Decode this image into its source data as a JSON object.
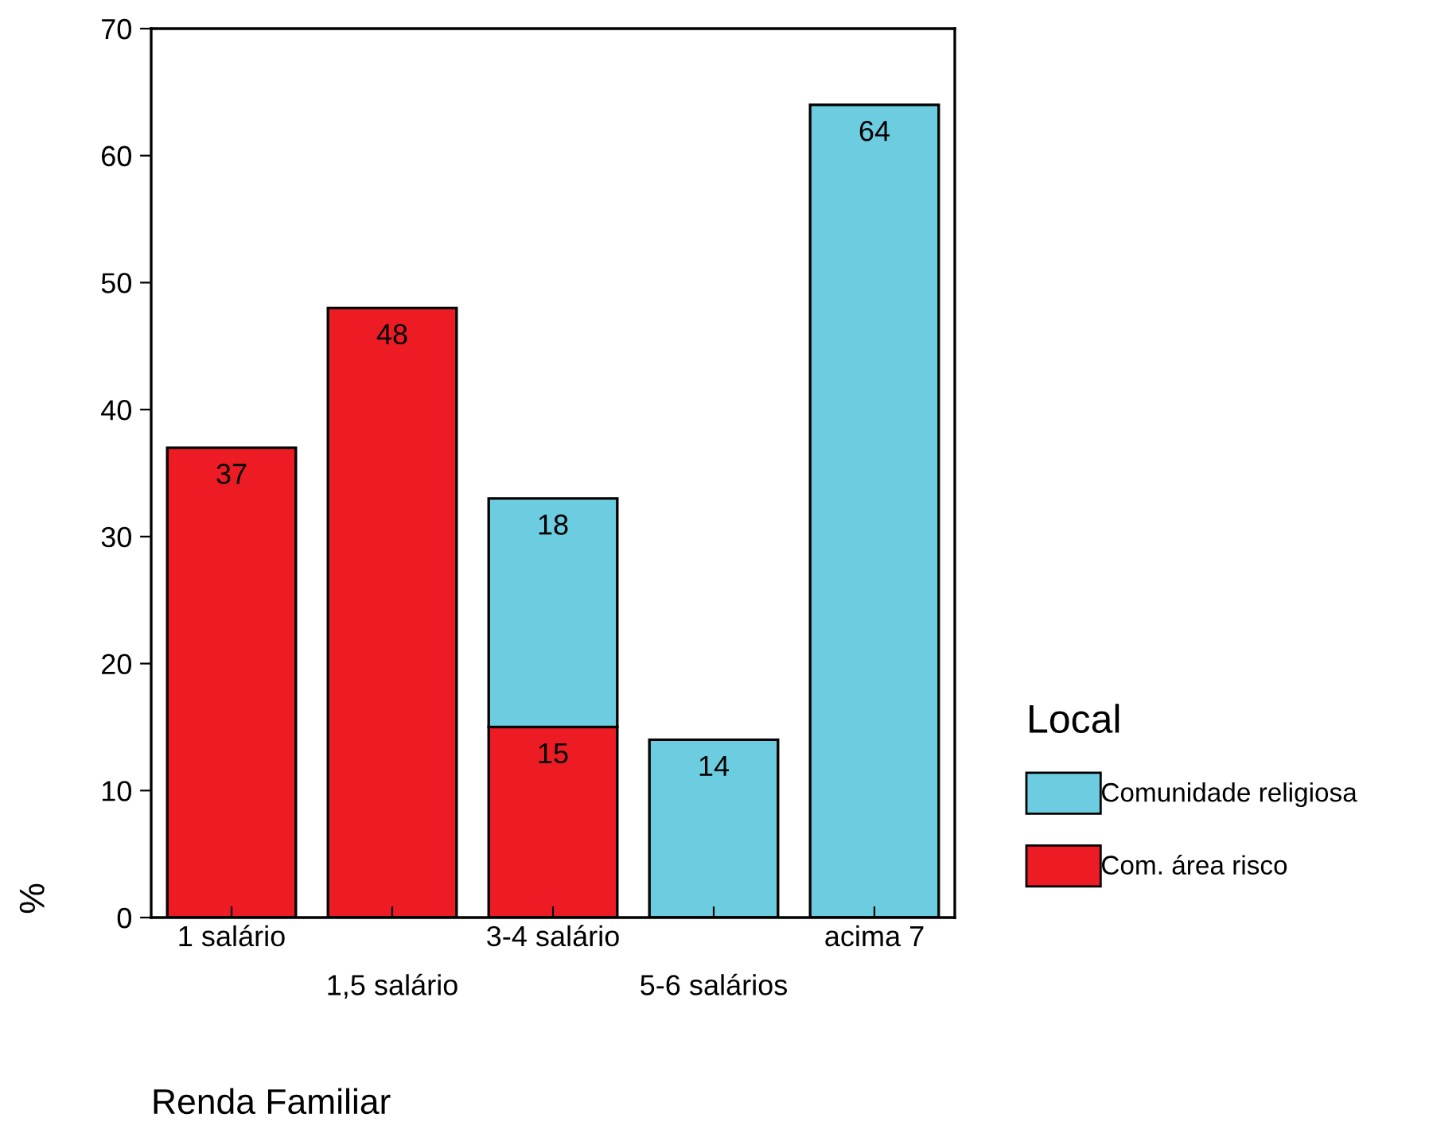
{
  "chart_data": {
    "type": "bar",
    "stacked": true,
    "xlabel": "Renda Familiar",
    "ylabel": "%",
    "legend_title": "Local",
    "legend": "right",
    "categories": [
      "1 salário",
      "1,5 salário",
      "3-4 salário",
      "5-6 salários",
      "acima 7"
    ],
    "series": [
      {
        "name": "Com. área risco",
        "color": "#ed1c24",
        "values": [
          37,
          48,
          15,
          null,
          null
        ]
      },
      {
        "name": "Comunidade religiosa",
        "color": "#6ccde0",
        "values": [
          null,
          null,
          18,
          14,
          64
        ]
      }
    ],
    "ylim": [
      0,
      70
    ],
    "yticks": [
      0,
      10,
      20,
      30,
      40,
      50,
      60,
      70
    ],
    "data_labels": true
  }
}
